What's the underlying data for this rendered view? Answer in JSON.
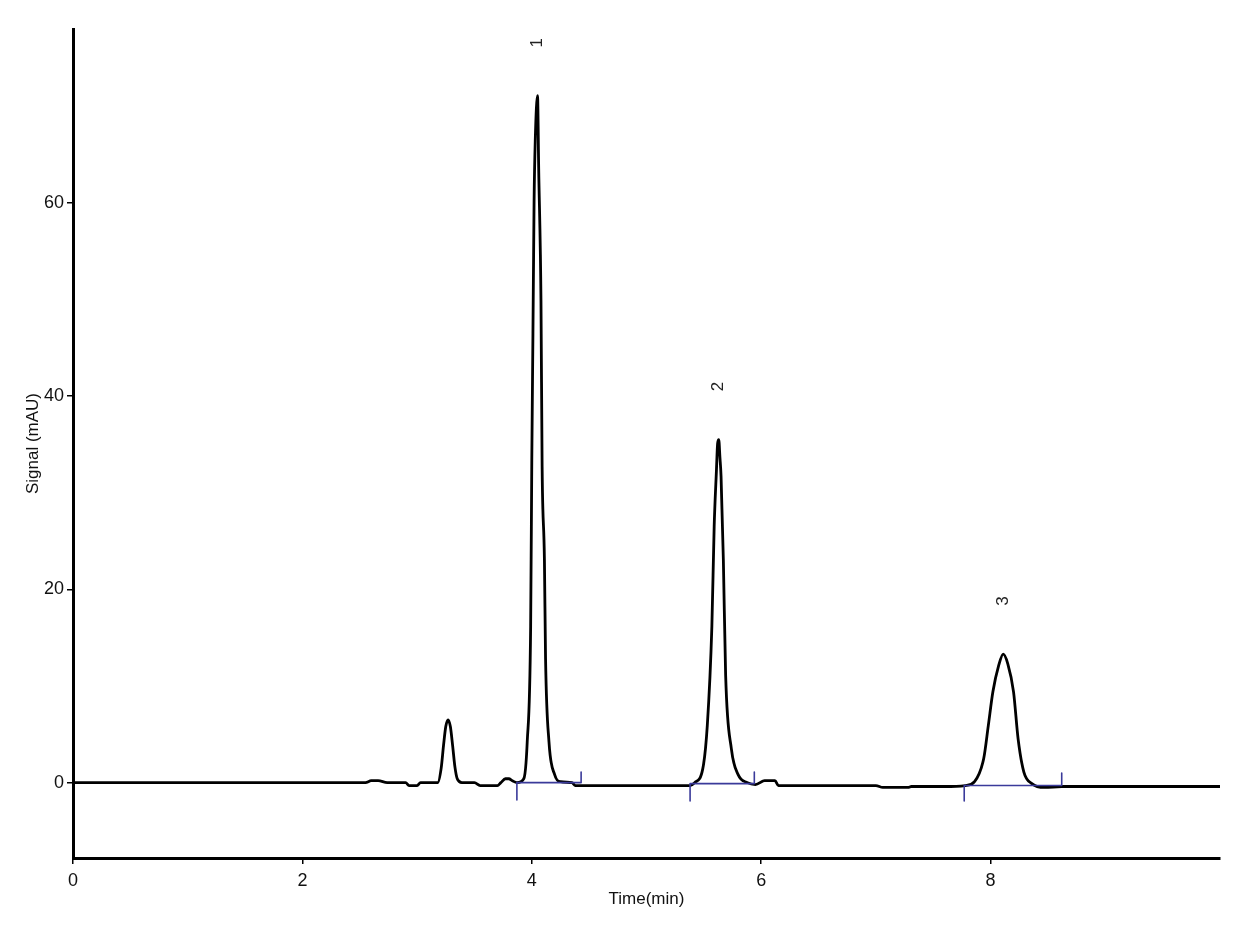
{
  "chart_data": {
    "type": "line",
    "xlabel": "Time(min)",
    "ylabel": "Signal (mAU)",
    "xlim": [
      0,
      10
    ],
    "ylim": [
      -7.8,
      78
    ],
    "xticks": [
      0,
      2,
      4,
      6,
      8
    ],
    "yticks": [
      0,
      20,
      40,
      60
    ],
    "grid": false,
    "legend": false,
    "marker": "none",
    "line_style": "solid",
    "series": [
      {
        "color": "#000000",
        "x": [
          0,
          1.0,
          2.0,
          2.55,
          2.6,
          2.66,
          2.74,
          2.9,
          2.93,
          3.0,
          3.03,
          3.18,
          3.21,
          3.23,
          3.25,
          3.27,
          3.29,
          3.31,
          3.33,
          3.35,
          3.39,
          3.5,
          3.55,
          3.7,
          3.73,
          3.77,
          3.8,
          3.83,
          3.87,
          3.93,
          3.96,
          3.99,
          4.0,
          4.01,
          4.02,
          4.03,
          4.05,
          4.06,
          4.08,
          4.09,
          4.11,
          4.12,
          4.15,
          4.2,
          4.25,
          4.35,
          4.38,
          4.45,
          5.0,
          5.38,
          5.42,
          5.49,
          5.53,
          5.57,
          5.59,
          5.61,
          5.62,
          5.63,
          5.64,
          5.65,
          5.67,
          5.69,
          5.74,
          5.8,
          5.88,
          5.95,
          6.03,
          6.12,
          6.15,
          6.5,
          7.0,
          7.06,
          7.28,
          7.31,
          7.6,
          7.78,
          7.86,
          7.94,
          7.98,
          8.02,
          8.07,
          8.11,
          8.15,
          8.2,
          8.24,
          8.29,
          8.36,
          8.47,
          8.62,
          9.0,
          10.0
        ],
        "values": [
          0,
          0,
          0,
          0,
          0.2,
          0.2,
          0,
          0,
          -0.3,
          -0.3,
          0,
          0,
          1.5,
          3.8,
          5.8,
          6.5,
          5.8,
          3.8,
          1.6,
          0.4,
          0,
          0,
          -0.3,
          -0.3,
          0,
          0.4,
          0.4,
          0.2,
          0,
          0.4,
          4.2,
          16.2,
          33.4,
          46.5,
          60.2,
          66.4,
          71.1,
          63.6,
          49.9,
          32.7,
          23.1,
          12.8,
          4.2,
          0.8,
          0.1,
          0,
          -0.3,
          -0.3,
          -0.3,
          -0.3,
          0,
          1.4,
          5.9,
          16.2,
          26.5,
          32.4,
          35.1,
          35.5,
          33.7,
          31.7,
          23.1,
          11.1,
          3.5,
          0.8,
          0,
          -0.2,
          0.2,
          0.2,
          -0.3,
          -0.3,
          -0.3,
          -0.5,
          -0.5,
          -0.4,
          -0.4,
          -0.3,
          0.1,
          2.5,
          5.9,
          9.4,
          12.1,
          13.3,
          12.3,
          9.4,
          4.5,
          1.1,
          -0.1,
          -0.5,
          -0.4,
          -0.4,
          -0.4
        ]
      },
      {
        "color": "#3a3a9a",
        "x": [
          3.87,
          3.87,
          4.43,
          4.43
        ],
        "values": [
          -1.8,
          0,
          0,
          1.1
        ]
      },
      {
        "color": "#3a3a9a",
        "x": [
          5.38,
          5.38,
          5.94,
          5.94
        ],
        "values": [
          -1.9,
          -0.1,
          -0.1,
          1.1
        ]
      },
      {
        "color": "#3a3a9a",
        "x": [
          7.77,
          7.77,
          8.62,
          8.62
        ],
        "values": [
          -1.9,
          -0.3,
          -0.3,
          1.0
        ]
      }
    ],
    "annotations": [
      {
        "text": "1",
        "x": 4.05,
        "y": 71.1
      },
      {
        "text": "2",
        "x": 5.63,
        "y": 35.5
      },
      {
        "text": "3",
        "x": 8.11,
        "y": 13.3
      }
    ]
  }
}
